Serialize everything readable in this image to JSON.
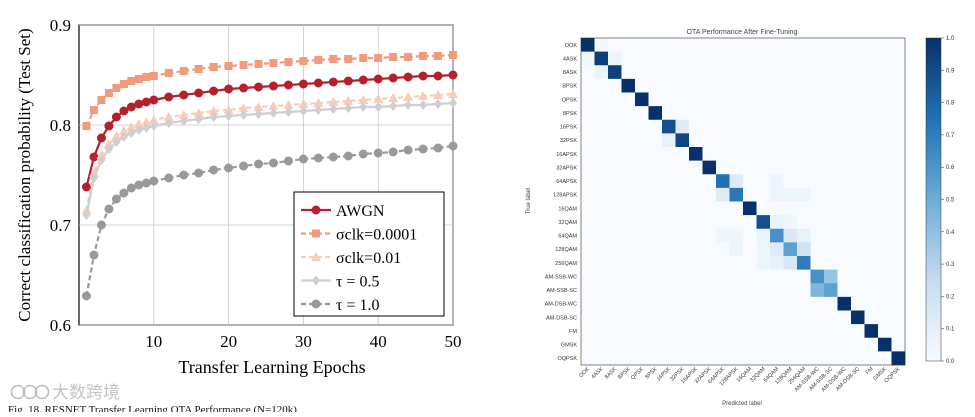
{
  "chart_data": [
    {
      "type": "line",
      "title": "",
      "xlabel": "Transfer Learning Epochs",
      "ylabel": "Correct classification probability (Test Set)",
      "xlim": [
        0,
        50
      ],
      "ylim": [
        0.6,
        0.9
      ],
      "xticks": [
        10,
        20,
        30,
        40,
        50
      ],
      "yticks": [
        0.6,
        0.7,
        0.8,
        0.9
      ],
      "xtick_labels": [
        "10",
        "20",
        "30",
        "40",
        "50"
      ],
      "ytick_labels": [
        "0.6",
        "0.7",
        "0.8",
        "0.9"
      ],
      "grid": true,
      "legend_position": "bottom-right",
      "series": [
        {
          "name": "AWGN",
          "color": "#b5202e",
          "marker": "circle",
          "dash": "solid",
          "x": [
            1,
            2,
            3,
            4,
            5,
            6,
            7,
            8,
            9,
            10,
            12,
            14,
            16,
            18,
            20,
            22,
            24,
            26,
            28,
            30,
            32,
            34,
            36,
            38,
            40,
            42,
            44,
            46,
            48,
            50
          ],
          "y": [
            0.738,
            0.768,
            0.787,
            0.799,
            0.808,
            0.814,
            0.818,
            0.821,
            0.823,
            0.825,
            0.828,
            0.83,
            0.832,
            0.834,
            0.836,
            0.837,
            0.838,
            0.839,
            0.84,
            0.841,
            0.842,
            0.843,
            0.844,
            0.845,
            0.846,
            0.847,
            0.848,
            0.849,
            0.849,
            0.85
          ]
        },
        {
          "name": "σclk=0.0001",
          "color": "#f29a7c",
          "marker": "square",
          "dash": "dashed",
          "x": [
            1,
            2,
            3,
            4,
            5,
            6,
            7,
            8,
            9,
            10,
            12,
            14,
            16,
            18,
            20,
            22,
            24,
            26,
            28,
            30,
            32,
            34,
            36,
            38,
            40,
            42,
            44,
            46,
            48,
            50
          ],
          "y": [
            0.799,
            0.815,
            0.825,
            0.832,
            0.837,
            0.841,
            0.844,
            0.846,
            0.848,
            0.849,
            0.852,
            0.854,
            0.856,
            0.858,
            0.859,
            0.86,
            0.861,
            0.862,
            0.863,
            0.864,
            0.865,
            0.866,
            0.866,
            0.867,
            0.867,
            0.868,
            0.868,
            0.869,
            0.869,
            0.87
          ]
        },
        {
          "name": "σclk=0.01",
          "color": "#f7ccbb",
          "marker": "triangle",
          "dash": "dashed",
          "x": [
            1,
            2,
            3,
            4,
            5,
            6,
            7,
            8,
            9,
            10,
            12,
            14,
            16,
            18,
            20,
            22,
            24,
            26,
            28,
            30,
            32,
            34,
            36,
            38,
            40,
            42,
            44,
            46,
            48,
            50
          ],
          "y": [
            0.715,
            0.752,
            0.77,
            0.781,
            0.789,
            0.794,
            0.798,
            0.801,
            0.803,
            0.805,
            0.808,
            0.81,
            0.812,
            0.814,
            0.815,
            0.817,
            0.818,
            0.819,
            0.82,
            0.821,
            0.822,
            0.823,
            0.824,
            0.825,
            0.826,
            0.827,
            0.828,
            0.829,
            0.83,
            0.831
          ]
        },
        {
          "name": "τ = 0.5",
          "color": "#cfcfcf",
          "marker": "diamond",
          "dash": "solid",
          "x": [
            1,
            2,
            3,
            4,
            5,
            6,
            7,
            8,
            9,
            10,
            12,
            14,
            16,
            18,
            20,
            22,
            24,
            26,
            28,
            30,
            32,
            34,
            36,
            38,
            40,
            42,
            44,
            46,
            48,
            50
          ],
          "y": [
            0.71,
            0.747,
            0.765,
            0.776,
            0.783,
            0.788,
            0.792,
            0.795,
            0.797,
            0.799,
            0.802,
            0.804,
            0.806,
            0.808,
            0.809,
            0.81,
            0.811,
            0.812,
            0.813,
            0.814,
            0.815,
            0.816,
            0.817,
            0.818,
            0.818,
            0.819,
            0.82,
            0.82,
            0.821,
            0.822
          ]
        },
        {
          "name": "τ = 1.0",
          "color": "#999999",
          "marker": "circle",
          "dash": "dashed",
          "x": [
            1,
            2,
            3,
            4,
            5,
            6,
            7,
            8,
            9,
            10,
            12,
            14,
            16,
            18,
            20,
            22,
            24,
            26,
            28,
            30,
            32,
            34,
            36,
            38,
            40,
            42,
            44,
            46,
            48,
            50
          ],
          "y": [
            0.629,
            0.67,
            0.7,
            0.716,
            0.726,
            0.732,
            0.737,
            0.74,
            0.742,
            0.744,
            0.747,
            0.75,
            0.752,
            0.755,
            0.757,
            0.759,
            0.761,
            0.762,
            0.764,
            0.766,
            0.767,
            0.768,
            0.769,
            0.771,
            0.772,
            0.773,
            0.775,
            0.776,
            0.777,
            0.779
          ]
        }
      ]
    },
    {
      "type": "heatmap",
      "title": "OTA Performance After Fine-Tuning",
      "xlabel": "Predicted label",
      "ylabel": "True label",
      "labels": [
        "OOK",
        "4ASK",
        "8ASK",
        "BPSK",
        "QPSK",
        "8PSK",
        "16PSK",
        "32PSK",
        "16APSK",
        "32APSK",
        "64APSK",
        "128APSK",
        "16QAM",
        "32QAM",
        "64QAM",
        "128QAM",
        "256QAM",
        "AM-SSB-WC",
        "AM-SSB-SC",
        "AM-DSB-WC",
        "AM-DSB-SC",
        "FM",
        "GMSK",
        "OQPSK"
      ],
      "colorbar_ticks": [
        "1.0",
        "0.9",
        "0.8",
        "0.7",
        "0.6",
        "0.5",
        "0.4",
        "0.3",
        "0.2",
        "0.1",
        "0.0"
      ],
      "colormap": [
        "#f7fbff",
        "#c6dbef",
        "#6baed6",
        "#2171b5",
        "#08306b"
      ],
      "matrix": [
        [
          1.0,
          0.02,
          0,
          0,
          0,
          0,
          0,
          0,
          0,
          0,
          0,
          0,
          0,
          0,
          0,
          0,
          0,
          0,
          0,
          0,
          0,
          0,
          0,
          0
        ],
        [
          0.03,
          0.95,
          0.05,
          0,
          0,
          0,
          0,
          0,
          0,
          0,
          0,
          0,
          0,
          0,
          0,
          0,
          0,
          0,
          0,
          0,
          0,
          0,
          0,
          0
        ],
        [
          0,
          0.06,
          0.94,
          0,
          0,
          0,
          0,
          0,
          0,
          0,
          0,
          0,
          0,
          0,
          0,
          0,
          0,
          0,
          0,
          0,
          0,
          0,
          0,
          0
        ],
        [
          0,
          0,
          0,
          1.0,
          0,
          0,
          0,
          0,
          0,
          0,
          0,
          0,
          0,
          0,
          0,
          0,
          0,
          0,
          0,
          0,
          0,
          0,
          0,
          0
        ],
        [
          0,
          0,
          0,
          0,
          1.0,
          0,
          0,
          0,
          0,
          0,
          0,
          0,
          0,
          0,
          0,
          0,
          0,
          0,
          0,
          0,
          0,
          0,
          0,
          0
        ],
        [
          0,
          0,
          0,
          0,
          0,
          1.0,
          0,
          0,
          0,
          0,
          0,
          0,
          0,
          0,
          0,
          0,
          0,
          0,
          0,
          0,
          0,
          0,
          0,
          0
        ],
        [
          0,
          0,
          0,
          0,
          0,
          0,
          0.88,
          0.12,
          0,
          0,
          0,
          0,
          0,
          0,
          0,
          0,
          0,
          0,
          0,
          0,
          0,
          0,
          0,
          0
        ],
        [
          0,
          0,
          0,
          0,
          0,
          0,
          0.08,
          0.92,
          0,
          0,
          0,
          0,
          0,
          0,
          0,
          0,
          0,
          0,
          0,
          0,
          0,
          0,
          0,
          0
        ],
        [
          0,
          0,
          0,
          0,
          0,
          0,
          0,
          0,
          1.0,
          0,
          0,
          0,
          0,
          0,
          0,
          0,
          0,
          0,
          0,
          0,
          0,
          0,
          0,
          0
        ],
        [
          0,
          0,
          0,
          0,
          0,
          0,
          0,
          0,
          0,
          1.0,
          0,
          0,
          0,
          0,
          0,
          0,
          0,
          0,
          0,
          0,
          0,
          0,
          0,
          0
        ],
        [
          0,
          0,
          0,
          0,
          0,
          0,
          0,
          0,
          0,
          0,
          0.75,
          0.12,
          0,
          0,
          0.05,
          0,
          0,
          0,
          0,
          0,
          0,
          0,
          0,
          0
        ],
        [
          0,
          0,
          0,
          0,
          0,
          0,
          0,
          0,
          0,
          0,
          0.12,
          0.72,
          0,
          0,
          0.05,
          0.05,
          0.05,
          0,
          0,
          0,
          0,
          0,
          0,
          0
        ],
        [
          0,
          0,
          0,
          0,
          0,
          0,
          0,
          0,
          0,
          0,
          0,
          0,
          1.0,
          0,
          0,
          0,
          0,
          0,
          0,
          0,
          0,
          0,
          0,
          0
        ],
        [
          0,
          0,
          0,
          0,
          0,
          0,
          0,
          0,
          0,
          0,
          0,
          0,
          0,
          0.88,
          0.06,
          0.04,
          0,
          0,
          0,
          0,
          0,
          0,
          0,
          0
        ],
        [
          0,
          0,
          0,
          0,
          0,
          0,
          0,
          0,
          0,
          0,
          0.04,
          0.04,
          0,
          0.06,
          0.62,
          0.15,
          0.08,
          0,
          0,
          0,
          0,
          0,
          0,
          0
        ],
        [
          0,
          0,
          0,
          0,
          0,
          0,
          0,
          0,
          0,
          0,
          0,
          0.05,
          0,
          0.05,
          0.12,
          0.55,
          0.2,
          0,
          0,
          0,
          0,
          0,
          0,
          0
        ],
        [
          0,
          0,
          0,
          0,
          0,
          0,
          0,
          0,
          0,
          0,
          0,
          0,
          0,
          0.05,
          0.08,
          0.15,
          0.7,
          0,
          0,
          0,
          0,
          0,
          0,
          0
        ],
        [
          0,
          0,
          0,
          0,
          0,
          0,
          0,
          0,
          0,
          0,
          0,
          0,
          0,
          0,
          0,
          0,
          0,
          0.62,
          0.38,
          0,
          0,
          0,
          0,
          0
        ],
        [
          0,
          0,
          0,
          0,
          0,
          0,
          0,
          0,
          0,
          0,
          0,
          0,
          0,
          0,
          0,
          0,
          0,
          0.45,
          0.55,
          0,
          0,
          0,
          0,
          0
        ],
        [
          0,
          0,
          0,
          0,
          0,
          0,
          0,
          0,
          0,
          0,
          0,
          0,
          0,
          0,
          0,
          0,
          0,
          0,
          0,
          1.0,
          0,
          0,
          0,
          0
        ],
        [
          0,
          0,
          0,
          0,
          0,
          0,
          0,
          0,
          0,
          0,
          0,
          0,
          0,
          0,
          0,
          0,
          0,
          0,
          0,
          0,
          1.0,
          0,
          0,
          0
        ],
        [
          0,
          0,
          0,
          0,
          0,
          0,
          0,
          0,
          0,
          0,
          0,
          0,
          0,
          0,
          0,
          0,
          0,
          0,
          0,
          0,
          0,
          1.0,
          0,
          0
        ],
        [
          0,
          0,
          0,
          0,
          0,
          0,
          0,
          0,
          0,
          0,
          0,
          0,
          0,
          0,
          0,
          0,
          0,
          0,
          0,
          0,
          0,
          0,
          1.0,
          0
        ],
        [
          0,
          0,
          0,
          0,
          0,
          0,
          0,
          0,
          0,
          0,
          0,
          0,
          0,
          0,
          0,
          0,
          0,
          0,
          0,
          0,
          0,
          0,
          0,
          1.0
        ]
      ]
    }
  ],
  "watermark": "大数跨境",
  "caption": "Fig. 18.    RESNET Transfer Learning OTA Performance (N=120k)"
}
